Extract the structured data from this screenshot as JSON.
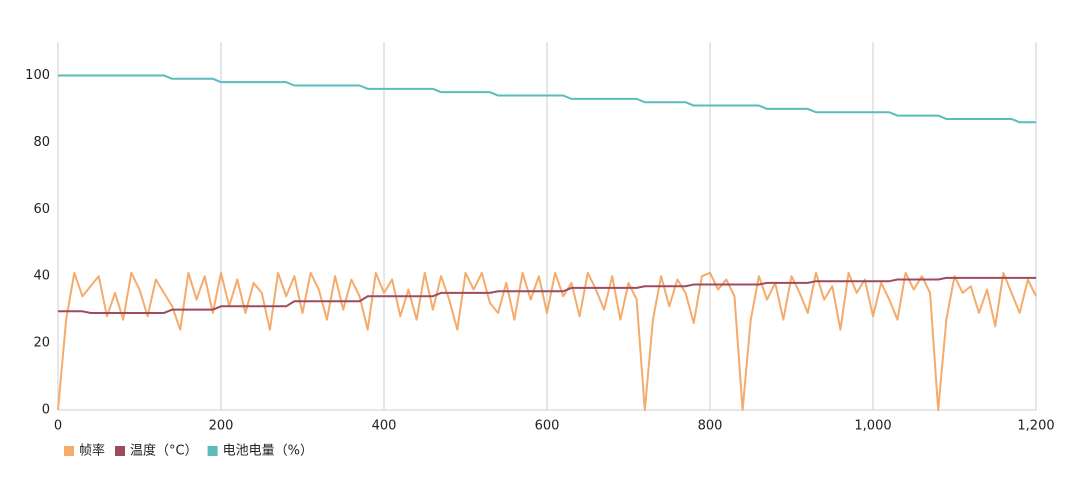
{
  "chart_data": {
    "type": "line",
    "x": [
      0,
      10,
      20,
      30,
      40,
      50,
      60,
      70,
      80,
      90,
      100,
      110,
      120,
      130,
      140,
      150,
      160,
      170,
      180,
      190,
      200,
      210,
      220,
      230,
      240,
      250,
      260,
      270,
      280,
      290,
      300,
      310,
      320,
      330,
      340,
      350,
      360,
      370,
      380,
      390,
      400,
      410,
      420,
      430,
      440,
      450,
      460,
      470,
      480,
      490,
      500,
      510,
      520,
      530,
      540,
      550,
      560,
      570,
      580,
      590,
      600,
      610,
      620,
      630,
      640,
      650,
      660,
      670,
      680,
      690,
      700,
      710,
      720,
      730,
      740,
      750,
      760,
      770,
      780,
      790,
      800,
      810,
      820,
      830,
      840,
      850,
      860,
      870,
      880,
      890,
      900,
      910,
      920,
      930,
      940,
      950,
      960,
      970,
      980,
      990,
      1000,
      1010,
      1020,
      1030,
      1040,
      1050,
      1060,
      1070,
      1080,
      1090,
      1100,
      1110,
      1120,
      1130,
      1140,
      1150,
      1160,
      1170,
      1180,
      1190,
      1200
    ],
    "series": [
      {
        "name": "帧率",
        "color": "#f5ab6b",
        "values": [
          0,
          27,
          41,
          34,
          37,
          40,
          28,
          35,
          27,
          41,
          36,
          28,
          39,
          35,
          31,
          24,
          41,
          33,
          40,
          29,
          41,
          31,
          39,
          29,
          38,
          35,
          24,
          41,
          34,
          40,
          29,
          41,
          36,
          27,
          40,
          30,
          39,
          34,
          24,
          41,
          35,
          39,
          28,
          36,
          27,
          41,
          30,
          40,
          33,
          24,
          41,
          36,
          41,
          32,
          29,
          38,
          27,
          41,
          33,
          40,
          29,
          41,
          34,
          38,
          28,
          41,
          36,
          30,
          40,
          27,
          38,
          33,
          0,
          27,
          40,
          31,
          39,
          35,
          26,
          40,
          41,
          36,
          39,
          34,
          0,
          27,
          40,
          33,
          38,
          27,
          40,
          35,
          29,
          41,
          33,
          37,
          24,
          41,
          35,
          39,
          28,
          38,
          33,
          27,
          41,
          36,
          40,
          35,
          0,
          27,
          40,
          35,
          37,
          29,
          36,
          25,
          41,
          35,
          29,
          39,
          34
        ]
      },
      {
        "name": "温度（°C）",
        "color": "#9e4a5f",
        "values": [
          29.5,
          29.5,
          29.5,
          29.5,
          29,
          29,
          29,
          29,
          29,
          29,
          29,
          29,
          29,
          29,
          30,
          30,
          30,
          30,
          30,
          30,
          31,
          31,
          31,
          31,
          31,
          31,
          31,
          31,
          31,
          32.5,
          32.5,
          32.5,
          32.5,
          32.5,
          32.5,
          32.5,
          32.5,
          32.5,
          34,
          34,
          34,
          34,
          34,
          34,
          34,
          34,
          34,
          35,
          35,
          35,
          35,
          35,
          35,
          35,
          35.5,
          35.5,
          35.5,
          35.5,
          35.5,
          35.5,
          35.5,
          35.5,
          35.5,
          36.5,
          36.5,
          36.5,
          36.5,
          36.5,
          36.5,
          36.5,
          36.5,
          36.5,
          37,
          37,
          37,
          37,
          37,
          37,
          37.5,
          37.5,
          37.5,
          37.5,
          37.5,
          37.5,
          37.5,
          37.5,
          37.5,
          38,
          38,
          38,
          38,
          38,
          38,
          38.5,
          38.5,
          38.5,
          38.5,
          38.5,
          38.5,
          38.5,
          38.5,
          38.5,
          38.5,
          39,
          39,
          39,
          39,
          39,
          39,
          39.5,
          39.5,
          39.5,
          39.5,
          39.5,
          39.5,
          39.5,
          39.5,
          39.5,
          39.5,
          39.5,
          39.5
        ]
      },
      {
        "name": "电池电量（%）",
        "color": "#5bbcbd",
        "values": [
          100,
          100,
          100,
          100,
          100,
          100,
          100,
          100,
          100,
          100,
          100,
          100,
          100,
          100,
          99,
          99,
          99,
          99,
          99,
          99,
          98,
          98,
          98,
          98,
          98,
          98,
          98,
          98,
          98,
          97,
          97,
          97,
          97,
          97,
          97,
          97,
          97,
          97,
          96,
          96,
          96,
          96,
          96,
          96,
          96,
          96,
          96,
          95,
          95,
          95,
          95,
          95,
          95,
          95,
          94,
          94,
          94,
          94,
          94,
          94,
          94,
          94,
          94,
          93,
          93,
          93,
          93,
          93,
          93,
          93,
          93,
          93,
          92,
          92,
          92,
          92,
          92,
          92,
          91,
          91,
          91,
          91,
          91,
          91,
          91,
          91,
          91,
          90,
          90,
          90,
          90,
          90,
          90,
          89,
          89,
          89,
          89,
          89,
          89,
          89,
          89,
          89,
          89,
          88,
          88,
          88,
          88,
          88,
          88,
          87,
          87,
          87,
          87,
          87,
          87,
          87,
          87,
          87,
          86,
          86,
          86
        ]
      }
    ],
    "xlim": [
      0,
      1200
    ],
    "xticks": [
      0,
      200,
      400,
      600,
      800,
      {
        "value": 1000,
        "label": "1,000"
      },
      {
        "value": 1200,
        "label": "1,200"
      }
    ],
    "ylim": [
      0,
      110
    ],
    "yticks": [
      0,
      20,
      40,
      60,
      80,
      100
    ],
    "grid": "x",
    "legend": "bottom-left"
  }
}
